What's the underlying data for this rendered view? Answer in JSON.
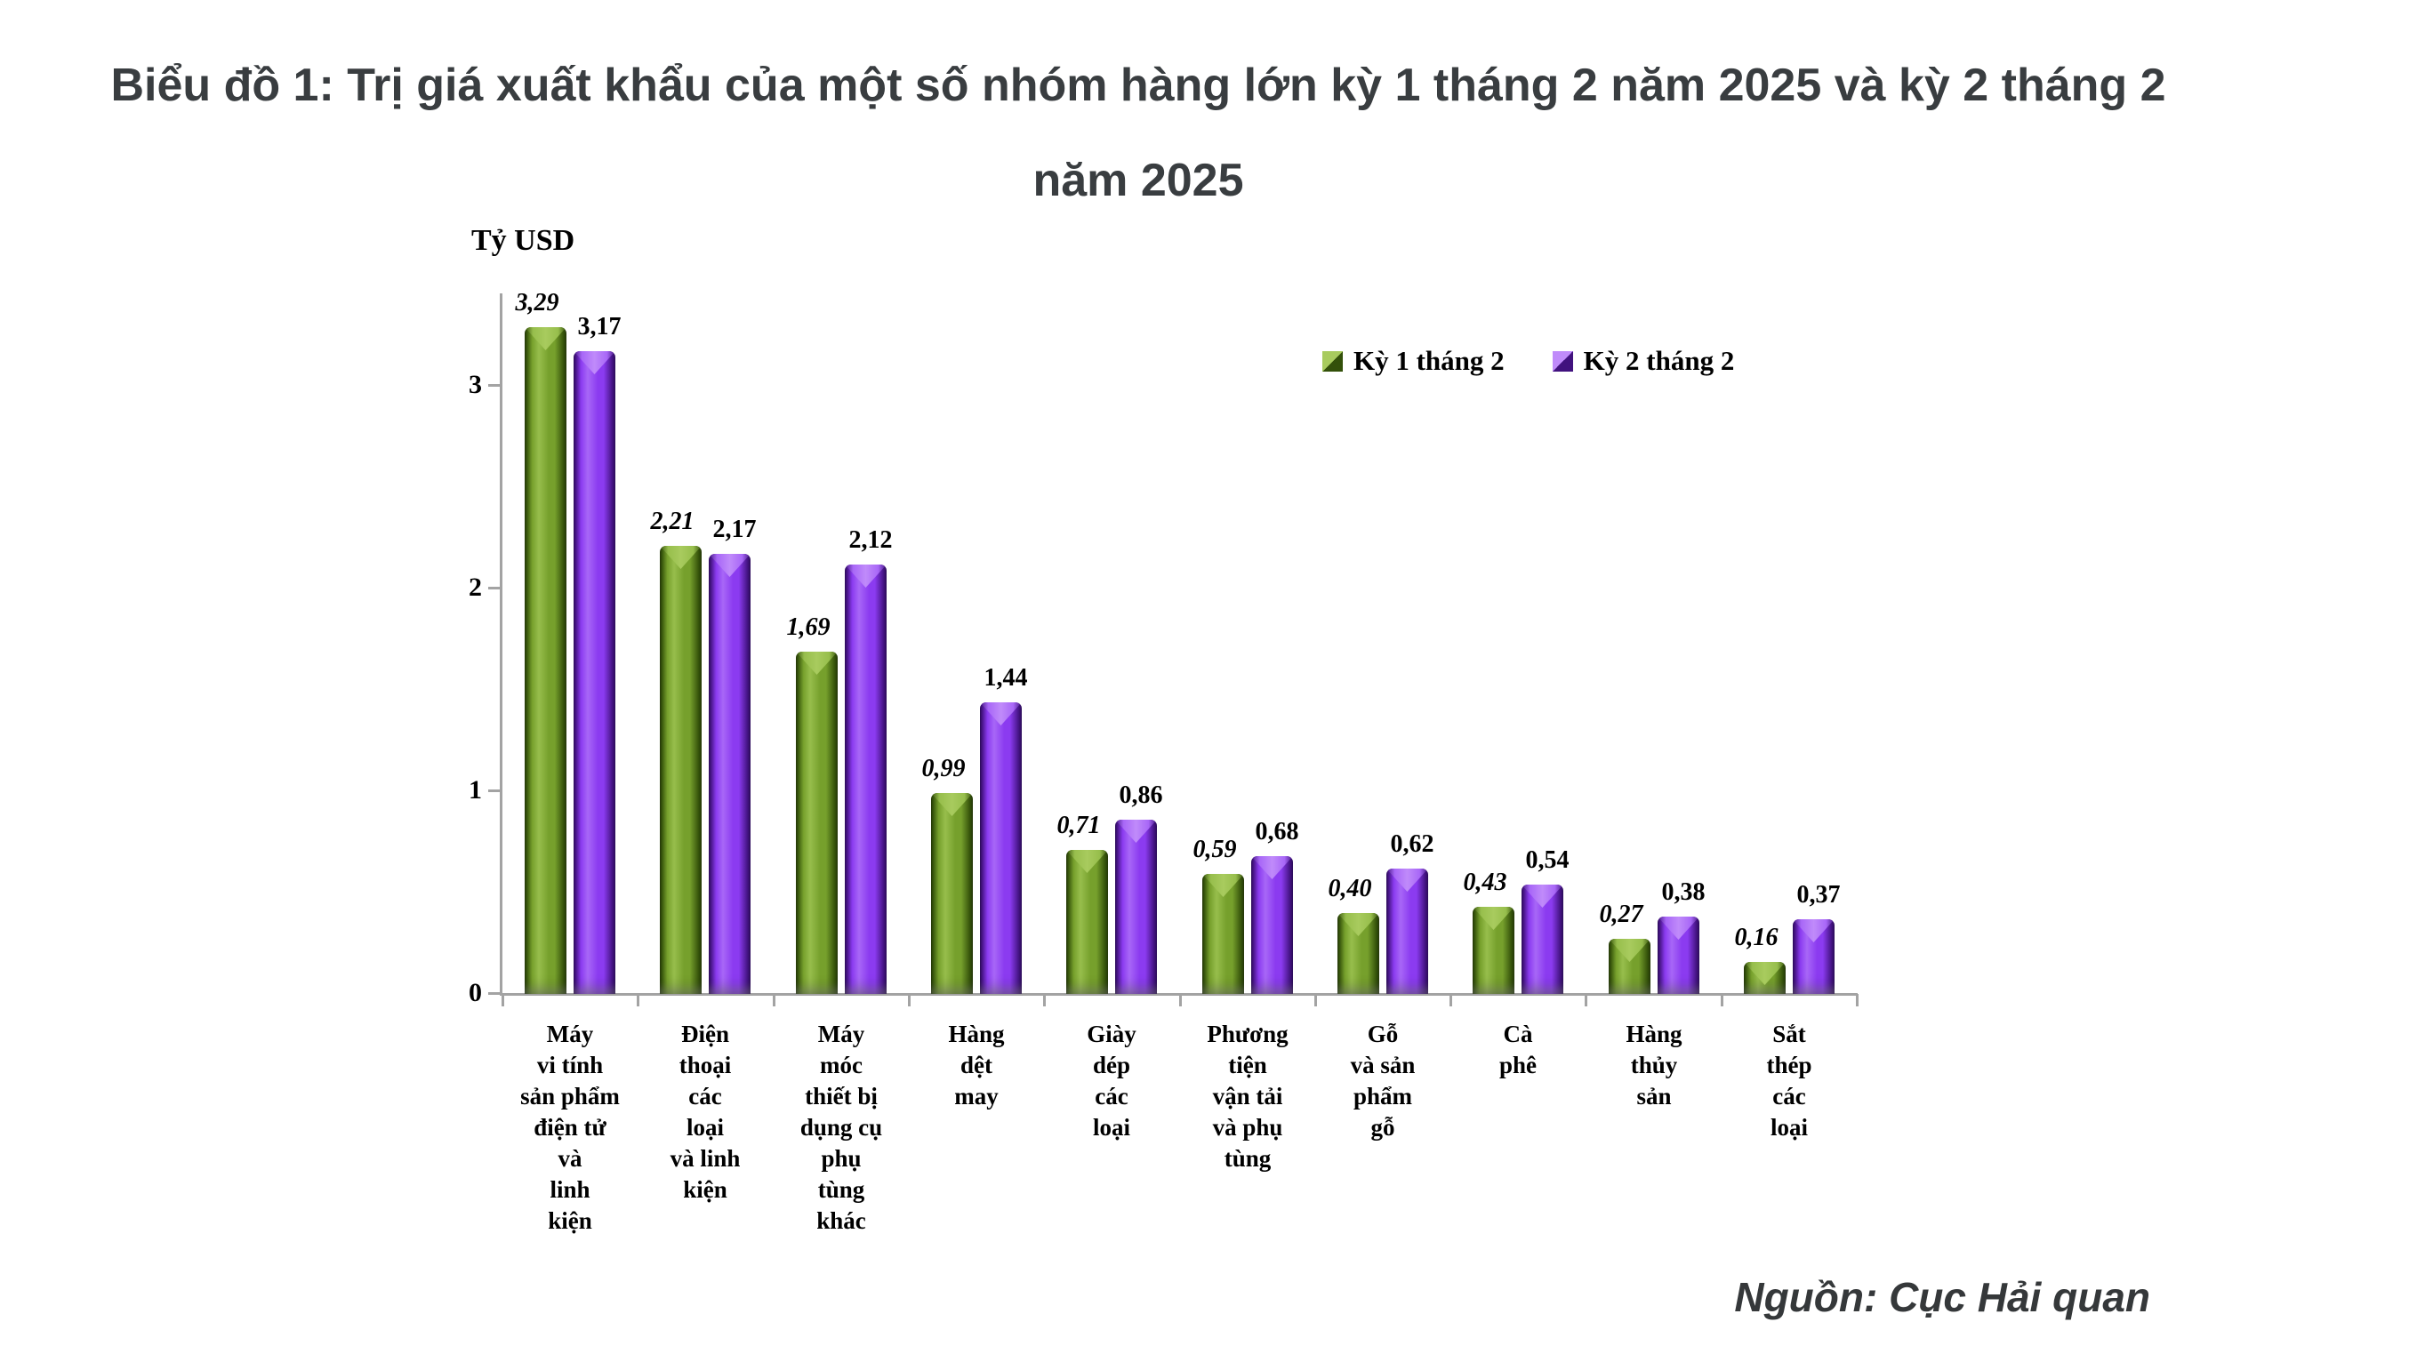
{
  "title": {
    "line1": "Biểu đồ 1: Trị giá xuất khẩu của một số nhóm hàng lớn kỳ 1 tháng 2 năm 2025 và kỳ 2 tháng 2",
    "line2": "năm 2025",
    "full": "Biểu đồ 1: Trị giá xuất khẩu của một số nhóm hàng lớn kỳ 1 tháng 2 năm 2025 và kỳ 2 tháng 2 năm 2025"
  },
  "y_axis": {
    "label": "Tỷ USD",
    "ticks": [
      0,
      1,
      2,
      3
    ]
  },
  "source": "Nguồn: Cục Hải quan",
  "chart_data": {
    "type": "bar",
    "title": "Biểu đồ 1: Trị giá xuất khẩu của một số nhóm hàng lớn kỳ 1 tháng 2 năm 2025 và kỳ 2 tháng 2 năm 2025",
    "ylabel": "Tỷ USD",
    "ylim": [
      0,
      3.46
    ],
    "grid": false,
    "legend_position": "top-right",
    "categories": [
      "Máy\nvi tính\nsản phẩm\nđiện tử\nvà\nlinh\nkiện",
      "Điện\nthoại\ncác\nloại\nvà linh\nkiện",
      "Máy\nmóc\nthiết bị\ndụng cụ\nphụ\ntùng\nkhác",
      "Hàng\ndệt\nmay",
      "Giày\ndép\ncác\nloại",
      "Phương\ntiện\nvận tải\nvà phụ\ntùng",
      "Gỗ\nvà sản\nphẩm\ngỗ",
      "Cà\nphê",
      "Hàng\nthủy\nsản",
      "Sắt\nthép\ncác\nloại"
    ],
    "series": [
      {
        "name": "Kỳ 1 tháng 2",
        "values": [
          3.29,
          2.21,
          1.69,
          0.99,
          0.71,
          0.59,
          0.4,
          0.43,
          0.27,
          0.16
        ],
        "labels": [
          "3,29",
          "2,21",
          "1,69",
          "0,99",
          "0,71",
          "0,59",
          "0,40",
          "0,43",
          "0,27",
          "0,16"
        ],
        "colors": {
          "main": "#76A02C",
          "hl": "#97BE4C",
          "cap": "#A8CB5E",
          "shadow": "#33500A",
          "edge": "#24380A"
        }
      },
      {
        "name": "Kỳ 2 tháng 2",
        "values": [
          3.17,
          2.17,
          2.12,
          1.44,
          0.86,
          0.68,
          0.62,
          0.54,
          0.38,
          0.37
        ],
        "labels": [
          "3,17",
          "2,17",
          "2,12",
          "1,44",
          "0,86",
          "0,68",
          "0,62",
          "0,54",
          "0,38",
          "0,37"
        ],
        "colors": {
          "main": "#8B3BF0",
          "hl": "#A867F7",
          "cap": "#C08BFA",
          "shadow": "#41127E",
          "edge": "#2C0D59"
        }
      }
    ]
  }
}
